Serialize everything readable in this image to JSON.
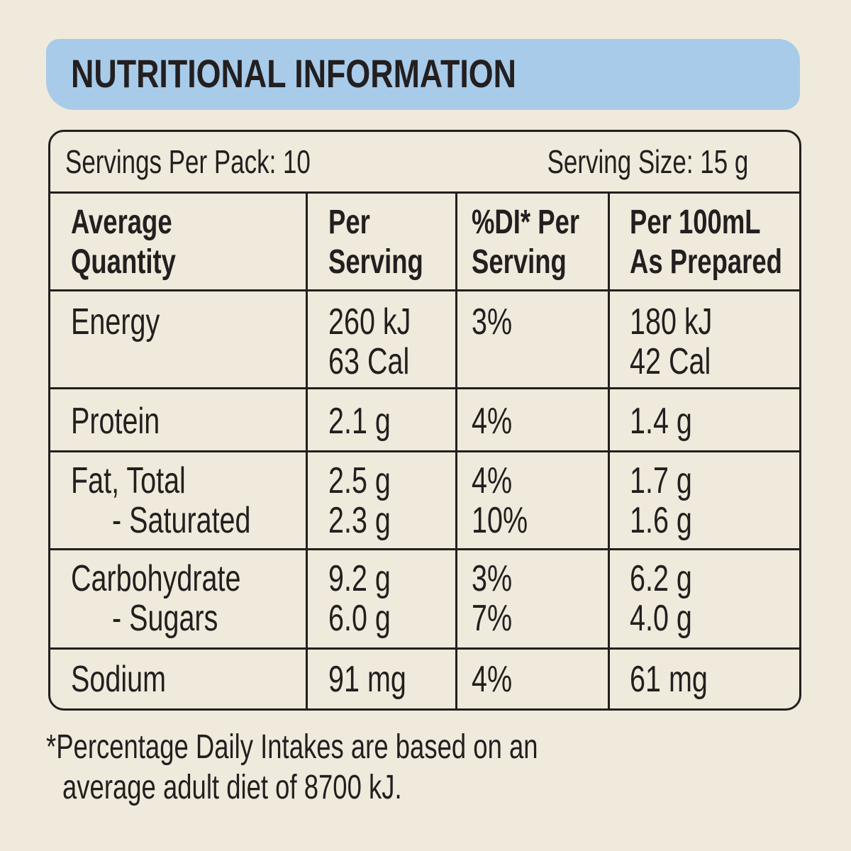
{
  "header": {
    "title": "NUTRITIONAL INFORMATION"
  },
  "servings": {
    "per_pack": "Servings Per Pack: 10",
    "size": "Serving Size: 15 g"
  },
  "table": {
    "columns": [
      [
        "Average",
        "Quantity"
      ],
      [
        "Per",
        "Serving"
      ],
      [
        "%DI* Per",
        "Serving"
      ],
      [
        "Per 100mL",
        "As Prepared"
      ]
    ],
    "rows": [
      [
        [
          "Energy"
        ],
        [
          "260 kJ",
          "63 Cal"
        ],
        [
          "3%"
        ],
        [
          "180 kJ",
          "42 Cal"
        ]
      ],
      [
        [
          "Protein"
        ],
        [
          "2.1 g"
        ],
        [
          "4%"
        ],
        [
          "1.4 g"
        ]
      ],
      [
        [
          "Fat, Total",
          "- Saturated"
        ],
        [
          "2.5 g",
          "2.3 g"
        ],
        [
          "4%",
          "10%"
        ],
        [
          "1.7 g",
          "1.6 g"
        ]
      ],
      [
        [
          "Carbohydrate",
          "- Sugars"
        ],
        [
          "9.2 g",
          "6.0 g"
        ],
        [
          "3%",
          "7%"
        ],
        [
          "6.2 g",
          "4.0 g"
        ]
      ],
      [
        [
          "Sodium"
        ],
        [
          "91 mg"
        ],
        [
          "4%"
        ],
        [
          "61 mg"
        ]
      ]
    ]
  },
  "footnote": [
    "*Percentage Daily Intakes are based on an",
    "average adult diet of 8700 kJ."
  ]
}
